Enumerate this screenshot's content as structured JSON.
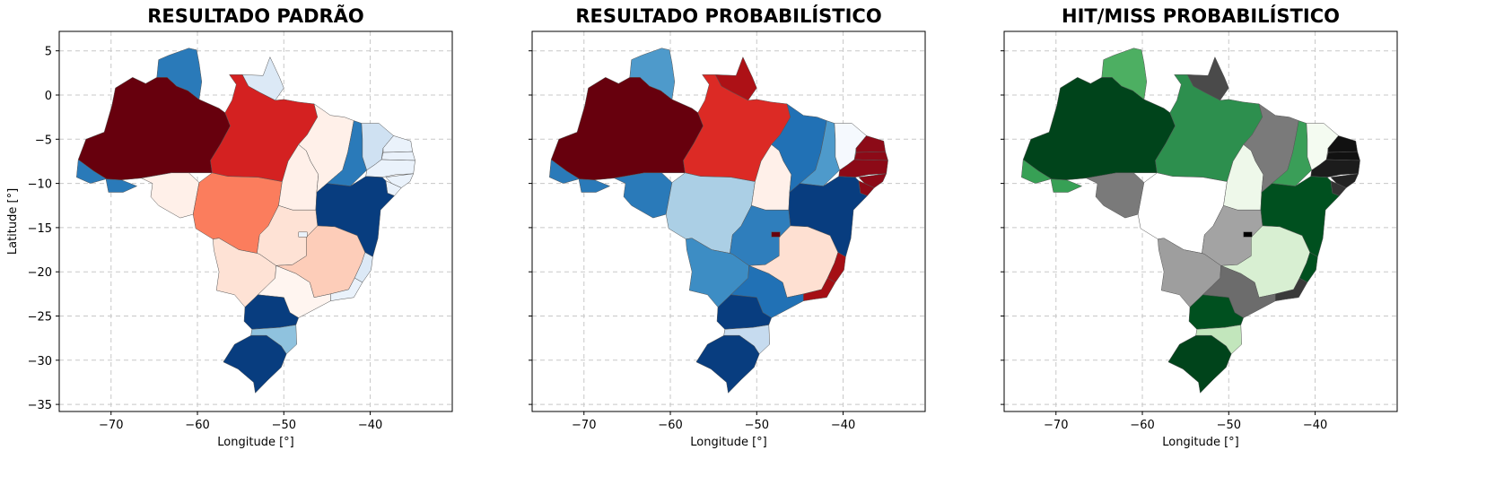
{
  "figure": {
    "tick_x": [
      "−70",
      "−60",
      "−50",
      "−40"
    ],
    "tick_y": [
      "5",
      "0",
      "−5",
      "−10",
      "−15",
      "−20",
      "−25",
      "−30",
      "−35"
    ],
    "xlim": [
      -76,
      -30.5
    ],
    "ylim": [
      -35.8,
      7.2
    ]
  },
  "panels": [
    {
      "title": "RESULTADO PADRÃO",
      "xlabel": "Longitude [°]",
      "ylabel": "Latitude [°]",
      "show_y_ticklabels": true,
      "fills": {
        "AM": "#67000d",
        "RR": "#2a7ab9",
        "AP": "#dce9f6",
        "PA": "#d42121",
        "AC": "#2a7ab9",
        "RO": "#fff0e9",
        "MT": "#fb7d5d",
        "TO": "#fff0e9",
        "MA": "#fff0e9",
        "PI": "#2a7ab9",
        "CE": "#cfe1f2",
        "RN": "#eaf2fb",
        "PB": "#eaf2fb",
        "PE": "#eaf2fb",
        "AL": "#eaf2fb",
        "SE": "#eaf2fb",
        "BA": "#083d7f",
        "GO": "#fee2d5",
        "DF": "#eaf2fb",
        "MG": "#fdcdb9",
        "MS": "#fee2d5",
        "SP": "#fff5f0",
        "ES": "#dce9f6",
        "RJ": "#eaf2fb",
        "PR": "#083d7f",
        "SC": "#8fc2de",
        "RS": "#083d7f"
      }
    },
    {
      "title": "RESULTADO PROBABILÍSTICO",
      "xlabel": "Longitude [°]",
      "ylabel": "",
      "show_y_ticklabels": false,
      "fills": {
        "AM": "#67000d",
        "RR": "#4e9acb",
        "AP": "#ad1116",
        "PA": "#dc2a25",
        "AC": "#2a7ab9",
        "RO": "#2a7ab9",
        "MT": "#abcfe5",
        "TO": "#fff0e9",
        "MA": "#2171b5",
        "PI": "#4e9acb",
        "CE": "#f5f9fe",
        "RN": "#8c0a17",
        "PB": "#8c0a17",
        "PE": "#8c0a17",
        "AL": "#8c0a17",
        "SE": "#8c0a17",
        "BA": "#083d7f",
        "GO": "#2f7ebc",
        "DF": "#67000d",
        "MG": "#fee0d2",
        "MS": "#3d8dc4",
        "SP": "#2171b5",
        "ES": "#a50f15",
        "RJ": "#a50f15",
        "PR": "#083d7f",
        "SC": "#c6dbef",
        "RS": "#083d7f"
      }
    },
    {
      "title": "HIT/MISS PROBABILÍSTICO",
      "xlabel": "Longitude [°]",
      "ylabel": "",
      "show_y_ticklabels": false,
      "fills": {
        "AM": "#00441b",
        "RR": "#4daf62",
        "AP": "#4a4a4a",
        "PA": "#2d8f4e",
        "AC": "#37a055",
        "RO": "#7a7a7a",
        "MT": "#ffffff",
        "TO": "#eef8ea",
        "MA": "#7a7a7a",
        "PI": "#3a9e58",
        "CE": "#f4fbf1",
        "RN": "#111111",
        "PB": "#111111",
        "PE": "#1c1c1c",
        "AL": "#222222",
        "SE": "#333333",
        "BA": "#00501f",
        "GO": "#a3a3a3",
        "DF": "#000000",
        "MG": "#d8efd2",
        "MS": "#9e9e9e",
        "SP": "#6c6c6c",
        "ES": "#00501f",
        "RJ": "#3a3a3a",
        "PR": "#00501f",
        "SC": "#c2e6bc",
        "RS": "#00441b"
      }
    }
  ]
}
